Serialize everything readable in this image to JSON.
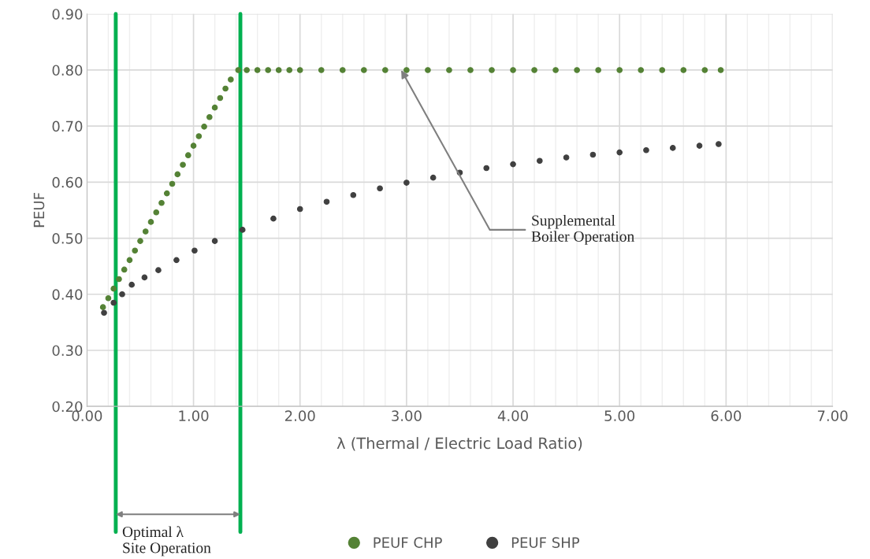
{
  "chart_data": {
    "type": "scatter",
    "xlabel": "λ (Thermal / Electric Load Ratio)",
    "ylabel": "PEUF",
    "xlim": [
      0,
      7
    ],
    "ylim": [
      0.2,
      0.9
    ],
    "xticks": [
      {
        "value": 0,
        "label": "0.00"
      },
      {
        "value": 0.2,
        "label": null
      },
      {
        "value": 0.4,
        "label": null
      },
      {
        "value": 0.6,
        "label": null
      },
      {
        "value": 0.8,
        "label": null
      },
      {
        "value": 1,
        "label": "1.00"
      },
      {
        "value": 1.2,
        "label": null
      },
      {
        "value": 1.4,
        "label": null
      },
      {
        "value": 1.6,
        "label": null
      },
      {
        "value": 1.8,
        "label": null
      },
      {
        "value": 2,
        "label": "2.00"
      },
      {
        "value": 2.2,
        "label": null
      },
      {
        "value": 2.4,
        "label": null
      },
      {
        "value": 2.6,
        "label": null
      },
      {
        "value": 2.8,
        "label": null
      },
      {
        "value": 3,
        "label": "3.00"
      },
      {
        "value": 3.2,
        "label": null
      },
      {
        "value": 3.4,
        "label": null
      },
      {
        "value": 3.6,
        "label": null
      },
      {
        "value": 3.8,
        "label": null
      },
      {
        "value": 4,
        "label": "4.00"
      },
      {
        "value": 4.2,
        "label": null
      },
      {
        "value": 4.4,
        "label": null
      },
      {
        "value": 4.6,
        "label": null
      },
      {
        "value": 4.8,
        "label": null
      },
      {
        "value": 5,
        "label": "5.00"
      },
      {
        "value": 5.2,
        "label": null
      },
      {
        "value": 5.4,
        "label": null
      },
      {
        "value": 5.6,
        "label": null
      },
      {
        "value": 5.8,
        "label": null
      },
      {
        "value": 6,
        "label": "6.00"
      },
      {
        "value": 6.2,
        "label": null
      },
      {
        "value": 6.4,
        "label": null
      },
      {
        "value": 6.6,
        "label": null
      },
      {
        "value": 6.8,
        "label": null
      },
      {
        "value": 7,
        "label": "7.00"
      }
    ],
    "yticks": [
      {
        "value": 0.2,
        "label": "0.20"
      },
      {
        "value": 0.3,
        "label": "0.30"
      },
      {
        "value": 0.4,
        "label": "0.40"
      },
      {
        "value": 0.5,
        "label": "0.50"
      },
      {
        "value": 0.6,
        "label": "0.60"
      },
      {
        "value": 0.7,
        "label": "0.70"
      },
      {
        "value": 0.8,
        "label": "0.80"
      },
      {
        "value": 0.9,
        "label": "0.90"
      }
    ],
    "grid": true,
    "legend": "bottom",
    "marker": "circle",
    "series": [
      {
        "name": "PEUF CHP",
        "color": "#548235",
        "x": [
          0.15,
          0.2,
          0.25,
          0.3,
          0.35,
          0.4,
          0.45,
          0.5,
          0.55,
          0.6,
          0.65,
          0.7,
          0.75,
          0.8,
          0.85,
          0.9,
          0.95,
          1.0,
          1.05,
          1.1,
          1.15,
          1.2,
          1.25,
          1.3,
          1.35,
          1.42,
          1.5,
          1.6,
          1.7,
          1.8,
          1.9,
          2.0,
          2.2,
          2.4,
          2.6,
          2.8,
          3.0,
          3.2,
          3.4,
          3.6,
          3.8,
          4.0,
          4.2,
          4.4,
          4.6,
          4.8,
          5.0,
          5.2,
          5.4,
          5.6,
          5.8,
          5.95
        ],
        "values": [
          0.377,
          0.393,
          0.41,
          0.427,
          0.444,
          0.461,
          0.478,
          0.495,
          0.512,
          0.529,
          0.546,
          0.563,
          0.58,
          0.597,
          0.614,
          0.631,
          0.648,
          0.665,
          0.682,
          0.699,
          0.716,
          0.733,
          0.75,
          0.767,
          0.783,
          0.8,
          0.8,
          0.8,
          0.8,
          0.8,
          0.8,
          0.8,
          0.8,
          0.8,
          0.8,
          0.8,
          0.8,
          0.8,
          0.8,
          0.8,
          0.8,
          0.8,
          0.8,
          0.8,
          0.8,
          0.8,
          0.8,
          0.8,
          0.8,
          0.8,
          0.8,
          0.8
        ]
      },
      {
        "name": "PEUF SHP",
        "color": "#404040",
        "x": [
          0.16,
          0.25,
          0.33,
          0.42,
          0.54,
          0.67,
          0.84,
          1.01,
          1.2,
          1.46,
          1.75,
          2.0,
          2.25,
          2.5,
          2.75,
          3.0,
          3.25,
          3.5,
          3.75,
          4.0,
          4.25,
          4.5,
          4.75,
          5.0,
          5.25,
          5.5,
          5.75,
          5.93
        ],
        "values": [
          0.367,
          0.385,
          0.4,
          0.417,
          0.43,
          0.443,
          0.461,
          0.478,
          0.495,
          0.515,
          0.535,
          0.552,
          0.565,
          0.577,
          0.589,
          0.599,
          0.608,
          0.617,
          0.625,
          0.632,
          0.638,
          0.644,
          0.649,
          0.653,
          0.657,
          0.661,
          0.665,
          0.668
        ]
      }
    ],
    "ref_lines": [
      {
        "axis": "x",
        "value": 0.27,
        "color": "#00b050"
      },
      {
        "axis": "x",
        "value": 1.44,
        "color": "#00b050"
      }
    ],
    "annotations": [
      {
        "text": "Supplemental\nBoiler Operation",
        "x": 2.95,
        "y": 0.8
      },
      "Optimal λ\nSite Operation"
    ]
  }
}
